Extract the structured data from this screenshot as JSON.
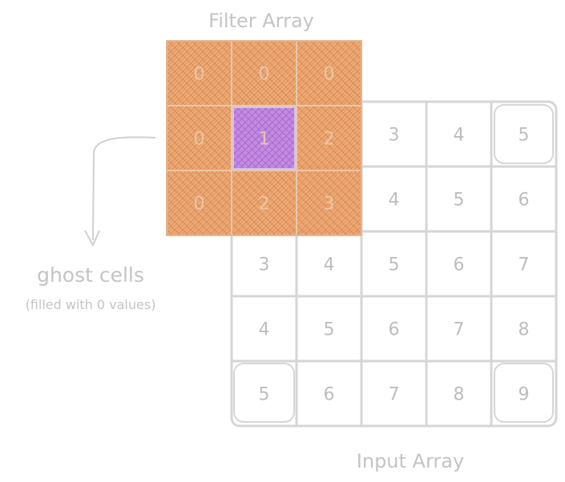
{
  "filter_title": "Filter Array",
  "input_title": "Input Array",
  "ghost": {
    "title": "ghost cells",
    "subtitle": "(filled with 0 values)"
  },
  "input_grid": [
    [
      1,
      2,
      3,
      4,
      5
    ],
    [
      2,
      3,
      4,
      5,
      6
    ],
    [
      3,
      4,
      5,
      6,
      7
    ],
    [
      4,
      5,
      6,
      7,
      8
    ],
    [
      5,
      6,
      7,
      8,
      9
    ]
  ],
  "filter_grid": [
    [
      "0",
      "0",
      "0"
    ],
    [
      "0",
      "1",
      "2"
    ],
    [
      "0",
      "2",
      "3"
    ]
  ],
  "colors": {
    "filter_fill": "#e8a46b",
    "filter_hatch": "#d9743a",
    "center_fill": "#c38be0",
    "center_hatch": "#9b59c7",
    "grid_line": "#d6d6d6",
    "text": "#c4c4c4"
  }
}
